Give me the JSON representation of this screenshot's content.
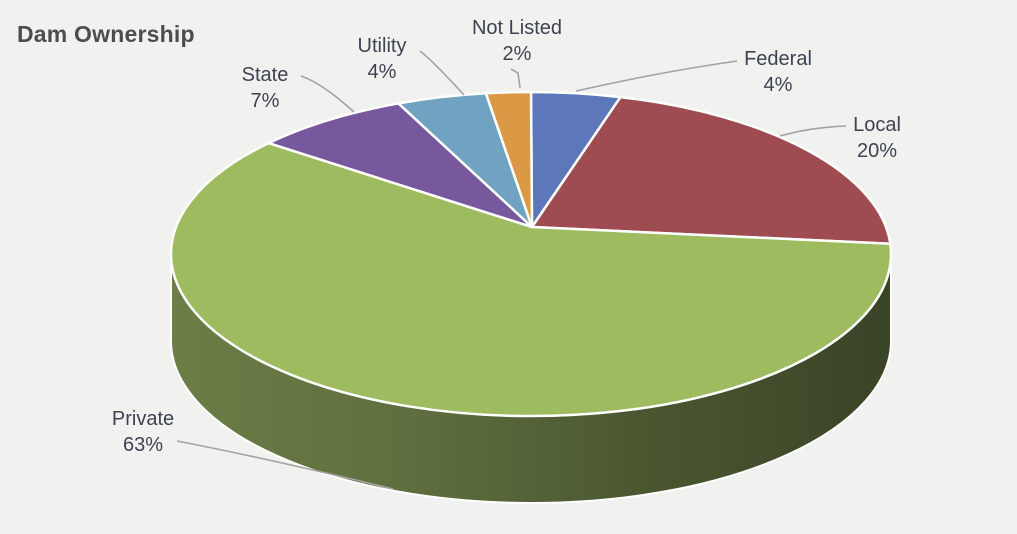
{
  "title": "Dam Ownership",
  "background_color": "#f1f1ef",
  "title_color": "#4d4d4d",
  "label_color": "#3e4353",
  "leader_color": "#a3a3a3",
  "chart_data": {
    "type": "pie",
    "style": "3d",
    "title": "Dam Ownership",
    "unit": "%",
    "start_angle_deg": 90,
    "direction": "clockwise",
    "legend_position": "none",
    "labels_position": "outside-with-leader-lines",
    "slices": [
      {
        "label": "Federal",
        "value": 4,
        "pct_text": "4%",
        "color": "#5c77ba"
      },
      {
        "label": "Local",
        "value": 20,
        "pct_text": "20%",
        "color": "#9e4c51"
      },
      {
        "label": "Private",
        "value": 63,
        "pct_text": "63%",
        "color": "#9ebb5f"
      },
      {
        "label": "State",
        "value": 7,
        "pct_text": "7%",
        "color": "#77589c"
      },
      {
        "label": "Utility",
        "value": 4,
        "pct_text": "4%",
        "color": "#6fa3c1"
      },
      {
        "label": "Not Listed",
        "value": 2,
        "pct_text": "2%",
        "color": "#db9845"
      }
    ],
    "side_gradient": [
      "#6c7d46",
      "#5e6e3e",
      "#4a5630",
      "#3a4426"
    ]
  }
}
